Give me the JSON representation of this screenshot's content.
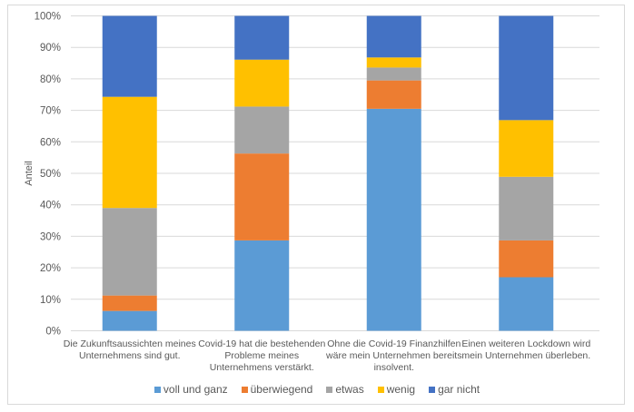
{
  "chart_data": {
    "type": "bar",
    "stacked": true,
    "percent_stacked": true,
    "title": "",
    "xlabel": "",
    "ylabel": "Anteil",
    "ylim": [
      0,
      100
    ],
    "yticks": [
      0,
      10,
      20,
      30,
      40,
      50,
      60,
      70,
      80,
      90,
      100
    ],
    "ytick_labels": [
      "0%",
      "10%",
      "20%",
      "30%",
      "40%",
      "50%",
      "60%",
      "70%",
      "80%",
      "90%",
      "100%"
    ],
    "grid": true,
    "legend_position": "bottom",
    "categories": [
      [
        "Die Zukunftsaussichten meines",
        "Unternehmens sind gut."
      ],
      [
        "Covid-19 hat die bestehenden",
        "Probleme meines",
        "Unternehmens verstärkt."
      ],
      [
        "Ohne die Covid-19 Finanzhilfen",
        "wäre mein Unternehmen bereits",
        "insolvent."
      ],
      [
        "Einen weiteren Lockdown wird",
        "mein Unternehmen überleben."
      ]
    ],
    "series": [
      {
        "name": "voll und ganz",
        "color": "#5b9bd5",
        "values": [
          6.3,
          28.7,
          70.5,
          17.0
        ]
      },
      {
        "name": "überwiegend",
        "color": "#ed7d31",
        "values": [
          4.9,
          27.6,
          9.0,
          11.7
        ]
      },
      {
        "name": "etwas",
        "color": "#a5a5a5",
        "values": [
          27.8,
          14.9,
          4.1,
          20.2
        ]
      },
      {
        "name": "wenig",
        "color": "#ffc000",
        "values": [
          35.3,
          14.9,
          3.2,
          18.0
        ]
      },
      {
        "name": "gar nicht",
        "color": "#4472c4",
        "values": [
          25.7,
          13.9,
          13.2,
          33.1
        ]
      }
    ]
  }
}
